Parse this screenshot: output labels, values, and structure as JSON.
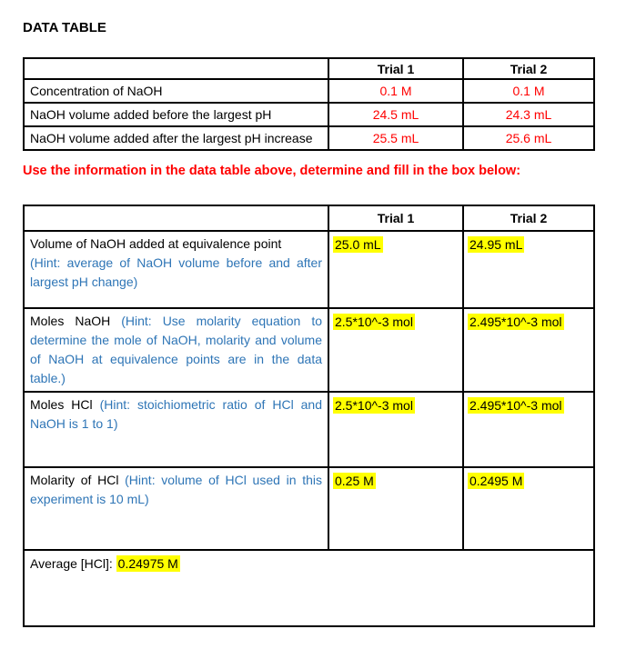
{
  "page": {
    "title": "DATA TABLE",
    "instruction": "Use the information in the data table above, determine and fill in the box below:"
  },
  "colors": {
    "value_red": "#FF0000",
    "hint_blue": "#2E75B6",
    "highlight_yellow": "#FFFF00"
  },
  "data_table": {
    "headers": [
      "",
      "Trial 1",
      "Trial 2"
    ],
    "rows": [
      {
        "label": "Concentration of NaOH",
        "trial1": "0.1 M",
        "trial2": "0.1 M"
      },
      {
        "label": "NaOH volume added before the largest pH",
        "trial1": "24.5 mL",
        "trial2": "24.3 mL"
      },
      {
        "label": "NaOH volume added after the largest pH increase",
        "trial1": "25.5 mL",
        "trial2": "25.6 mL"
      }
    ]
  },
  "results_table": {
    "headers": [
      "",
      "Trial 1",
      "Trial 2"
    ],
    "rows": [
      {
        "label": "Volume of NaOH added at equivalence point",
        "hint": " (Hint: average of NaOH volume before and after largest pH change)",
        "trial1": "25.0 mL",
        "trial2": "24.95 mL"
      },
      {
        "label": "Moles NaOH",
        "hint": " (Hint: Use molarity equation to determine the mole of NaOH, molarity and volume of NaOH at equivalence points are in the data table.)",
        "trial1": "2.5*10^-3 mol",
        "trial2": "2.495*10^-3 mol"
      },
      {
        "label": "Moles HCl",
        "hint": " (Hint: stoichiometric ratio of HCl and NaOH is 1 to 1)",
        "trial1": "2.5*10^-3 mol",
        "trial2": "2.495*10^-3 mol"
      },
      {
        "label": "Molarity of HCl",
        "hint": " (Hint: volume of HCl used in this experiment is 10 mL)",
        "trial1": "0.25 M",
        "trial2": "0.2495 M"
      }
    ],
    "footer": {
      "label": "Average [HCl]: ",
      "value": "0.24975 M"
    }
  }
}
